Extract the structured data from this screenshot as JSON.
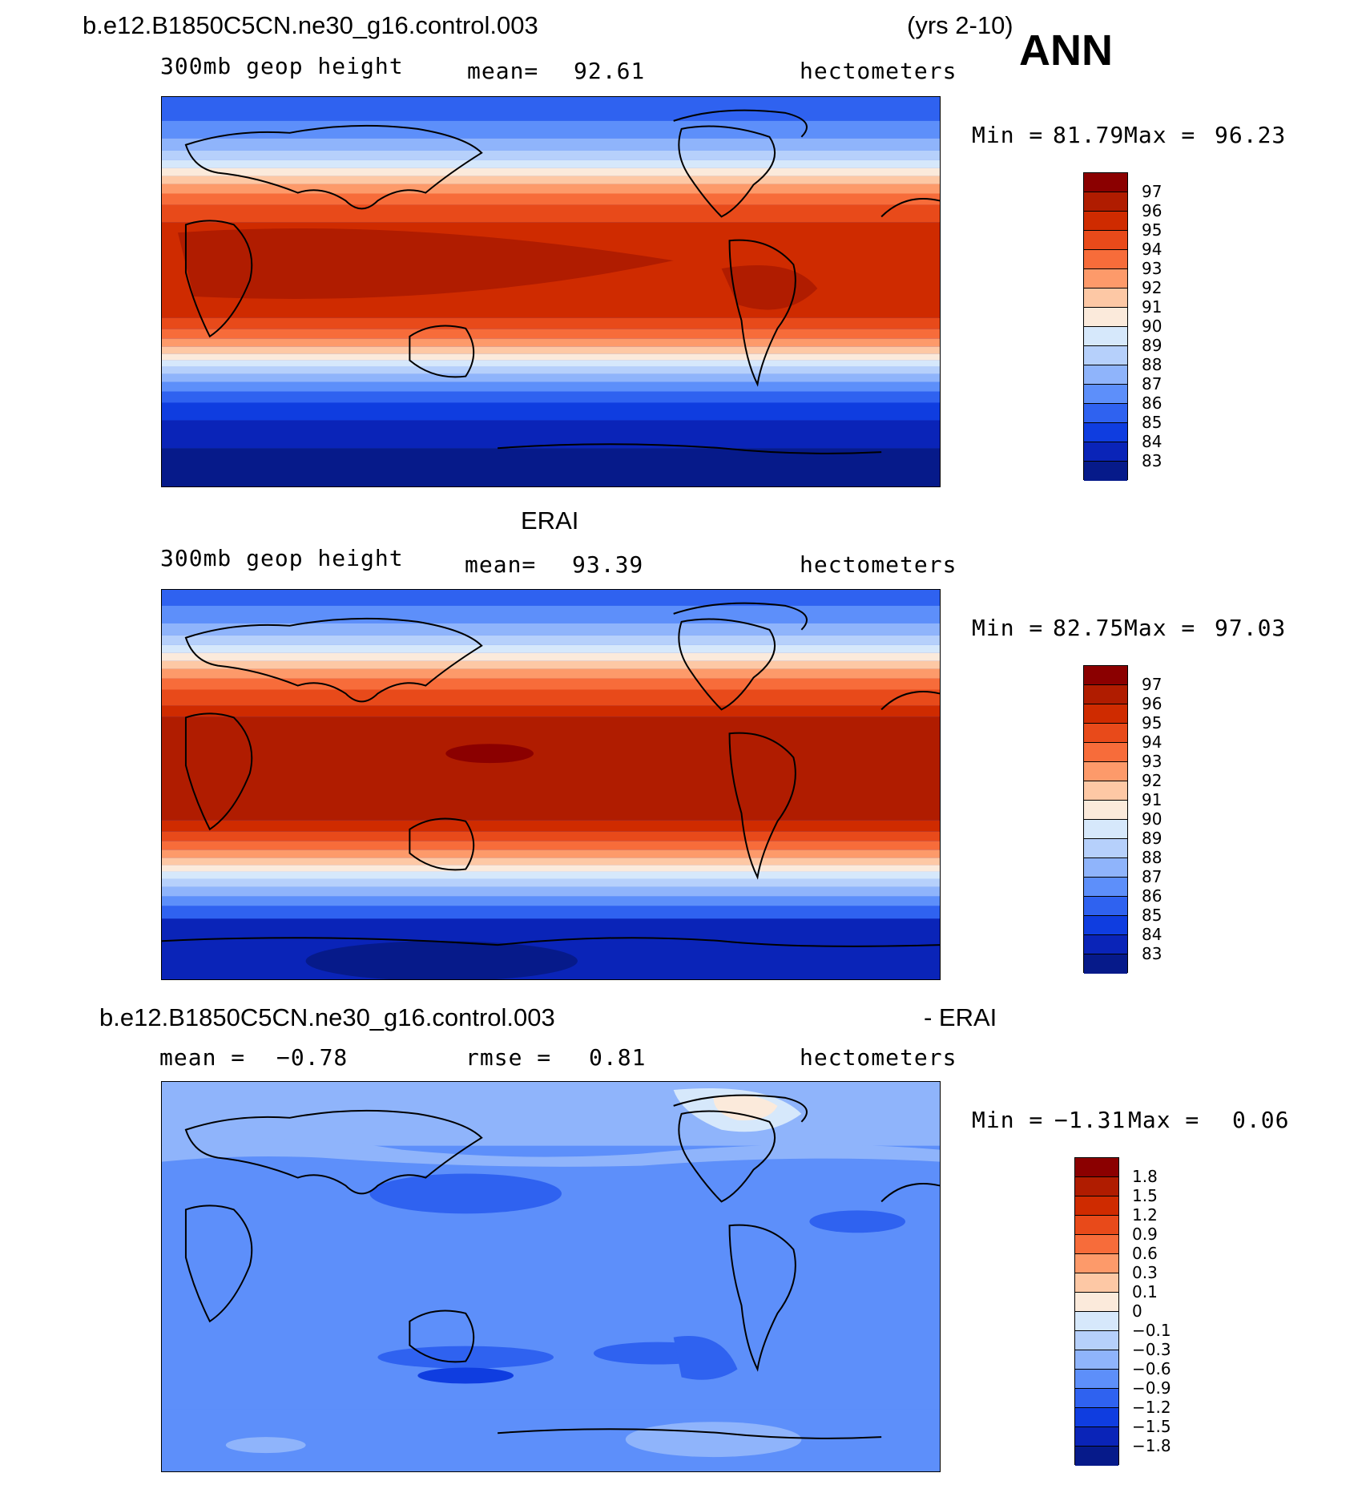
{
  "header": {
    "case_name": "b.e12.B1850C5CN.ne30_g16.control.003",
    "years": "(yrs 2-10)",
    "season": "ANN"
  },
  "panels": [
    {
      "title": "",
      "variable": "300mb geop height",
      "mean_label": "mean=",
      "mean_value": "92.61",
      "units": "hectometers",
      "min_label": "Min =",
      "min_value": "81.79",
      "max_label": "Max =",
      "max_value": "96.23",
      "colorbar_levels": [
        "97",
        "96",
        "95",
        "94",
        "93",
        "92",
        "91",
        "90",
        "89",
        "88",
        "87",
        "86",
        "85",
        "84",
        "83"
      ],
      "colors": [
        "#8b0000",
        "#b01c00",
        "#cf2b00",
        "#e84a1a",
        "#f76c3a",
        "#fd9a6a",
        "#fdc8a5",
        "#fbeadb",
        "#d6e8fb",
        "#b6d0fb",
        "#8fb4fb",
        "#5d8ffa",
        "#2f62f0",
        "#0f3de0",
        "#0a24b8",
        "#061a8a"
      ]
    },
    {
      "title": "ERAI",
      "variable": "300mb geop height",
      "mean_label": "mean=",
      "mean_value": "93.39",
      "units": "hectometers",
      "min_label": "Min =",
      "min_value": "82.75",
      "max_label": "Max =",
      "max_value": "97.03",
      "colorbar_levels": [
        "97",
        "96",
        "95",
        "94",
        "93",
        "92",
        "91",
        "90",
        "89",
        "88",
        "87",
        "86",
        "85",
        "84",
        "83"
      ],
      "colors": [
        "#8b0000",
        "#b01c00",
        "#cf2b00",
        "#e84a1a",
        "#f76c3a",
        "#fd9a6a",
        "#fdc8a5",
        "#fbeadb",
        "#d6e8fb",
        "#b6d0fb",
        "#8fb4fb",
        "#5d8ffa",
        "#2f62f0",
        "#0f3de0",
        "#0a24b8",
        "#061a8a"
      ]
    },
    {
      "title_case": "b.e12.B1850C5CN.ne30_g16.control.003",
      "title_minus": "- ERAI",
      "mean_label": "mean =",
      "mean_value": "−0.78",
      "rmse_label": "rmse =",
      "rmse_value": "0.81",
      "units": "hectometers",
      "min_label": "Min =",
      "min_value": "−1.31",
      "max_label": "Max =",
      "max_value": "0.06",
      "colorbar_levels": [
        "1.8",
        "1.5",
        "1.2",
        "0.9",
        "0.6",
        "0.3",
        "0.1",
        "0",
        "−0.1",
        "−0.3",
        "−0.6",
        "−0.9",
        "−1.2",
        "−1.5",
        "−1.8"
      ],
      "colors": [
        "#8b0000",
        "#b01c00",
        "#cf2b00",
        "#e84a1a",
        "#f76c3a",
        "#fd9a6a",
        "#fdc8a5",
        "#fbeadb",
        "#d6e8fb",
        "#b6d0fb",
        "#8fb4fb",
        "#5d8ffa",
        "#2f62f0",
        "#0f3de0",
        "#0a24b8",
        "#061a8a"
      ]
    }
  ]
}
